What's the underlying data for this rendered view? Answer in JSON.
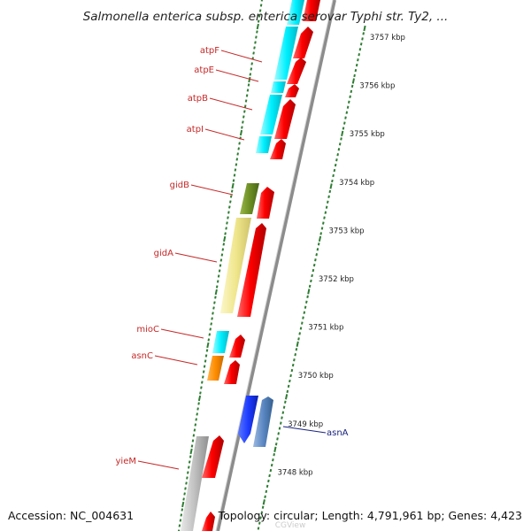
{
  "title": "Salmonella enterica subsp. enterica serovar Typhi str. Ty2, ...",
  "accession": "Accession: NC_004631",
  "topology": "Topology: circular; Length: 4,791,961 bp; Genes: 4,423",
  "watermark": "CGView",
  "colors": {
    "backbone": "#8c8c8c",
    "tick_major": "#2e7d32",
    "tick_minor": "#2e7d32",
    "label_red": "#c62828",
    "label_blue": "#1a237e",
    "red_strand": "#ff0000",
    "cyan_strand": "#00ffff",
    "olive": "#6b8e23",
    "khaki": "#f0e68c",
    "orange": "#ff8c00",
    "blue": "#1e3cff",
    "steelblue": "#5b87c3",
    "gray": "#c0c0c0"
  },
  "scale_labels": [
    {
      "text": "3757 kbp",
      "kbp": 3757
    },
    {
      "text": "3756 kbp",
      "kbp": 3756
    },
    {
      "text": "3755 kbp",
      "kbp": 3755
    },
    {
      "text": "3754 kbp",
      "kbp": 3754
    },
    {
      "text": "3753 kbp",
      "kbp": 3753
    },
    {
      "text": "3752 kbp",
      "kbp": 3752
    },
    {
      "text": "3751 kbp",
      "kbp": 3751
    },
    {
      "text": "3750 kbp",
      "kbp": 3750
    },
    {
      "text": "3749 kbp",
      "kbp": 3749
    },
    {
      "text": "3748 kbp",
      "kbp": 3748
    }
  ],
  "genes": [
    {
      "name": "atpF",
      "label_color": "#c62828"
    },
    {
      "name": "atpE",
      "label_color": "#c62828"
    },
    {
      "name": "atpB",
      "label_color": "#c62828"
    },
    {
      "name": "atpI",
      "label_color": "#c62828"
    },
    {
      "name": "gidB",
      "label_color": "#c62828"
    },
    {
      "name": "gidA",
      "label_color": "#c62828"
    },
    {
      "name": "mioC",
      "label_color": "#c62828"
    },
    {
      "name": "asnC",
      "label_color": "#c62828"
    },
    {
      "name": "asnA",
      "label_color": "#1a237e"
    },
    {
      "name": "yieM",
      "label_color": "#c62828"
    }
  ]
}
